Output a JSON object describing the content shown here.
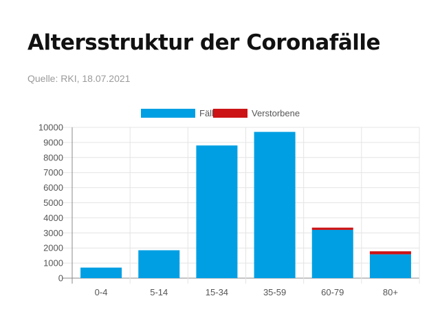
{
  "title": "Altersstruktur der Coronafälle",
  "source": "Quelle: RKI, 18.07.2021",
  "colors": {
    "cases": "#009fe3",
    "deaths": "#cc1416",
    "grid": "#e4e4e4",
    "axis": "#888888"
  },
  "chart_data": {
    "type": "bar",
    "stacked": true,
    "categories": [
      "0-4",
      "5-14",
      "15-34",
      "35-59",
      "60-79",
      "80+"
    ],
    "series": [
      {
        "name": "Fälle",
        "values": [
          700,
          1850,
          8800,
          9700,
          3200,
          1580
        ]
      },
      {
        "name": "Verstorbene",
        "values": [
          0,
          0,
          0,
          0,
          150,
          200
        ]
      }
    ],
    "ylim": [
      0,
      10000
    ],
    "yticks": [
      0,
      1000,
      2000,
      3000,
      4000,
      5000,
      6000,
      7000,
      8000,
      9000,
      10000
    ],
    "grid": true,
    "legend": "top-center"
  }
}
